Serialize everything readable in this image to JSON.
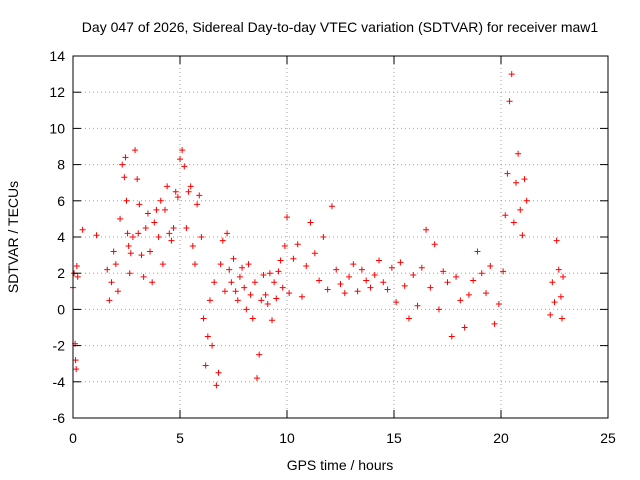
{
  "chart_data": {
    "type": "scatter",
    "title": "Day 047 of 2026, Sidereal Day-to-day VTEC variation (SDTVAR) for receiver maw1",
    "xlabel": "GPS time / hours",
    "ylabel": "SDTVAR / TECUs",
    "xlim": [
      0,
      25
    ],
    "ylim": [
      -6,
      14
    ],
    "xticks": [
      0,
      5,
      10,
      15,
      20,
      25
    ],
    "yticks": [
      -6,
      -4,
      -2,
      0,
      2,
      4,
      6,
      8,
      10,
      12,
      14
    ],
    "xtick_labels": [
      "0",
      "5",
      "10",
      "15",
      "20",
      "25"
    ],
    "ytick_labels": [
      "-6",
      "-4",
      "-2",
      "0",
      "2",
      "4",
      "6",
      "8",
      "10",
      "12",
      "14"
    ],
    "grid": true,
    "marker": "+",
    "series": [
      {
        "name": "SDTVAR maw1",
        "color": "#ff0000",
        "x": [
          0.0,
          0.05,
          0.1,
          0.12,
          0.15,
          0.18,
          0.22,
          0.45,
          1.1,
          1.6,
          1.7,
          1.8,
          1.9,
          2.0,
          2.1,
          2.2,
          2.3,
          2.4,
          2.45,
          2.5,
          2.55,
          2.6,
          2.65,
          2.7,
          2.8,
          2.9,
          3.0,
          3.05,
          3.1,
          3.2,
          3.3,
          3.4,
          3.5,
          3.6,
          3.7,
          3.8,
          3.9,
          4.0,
          4.1,
          4.2,
          4.3,
          4.4,
          4.5,
          4.6,
          4.7,
          4.8,
          4.9,
          5.0,
          5.1,
          5.2,
          5.3,
          5.4,
          5.5,
          5.6,
          5.7,
          5.8,
          5.9,
          6.0,
          6.1,
          6.2,
          6.3,
          6.4,
          6.5,
          6.6,
          6.7,
          6.8,
          6.9,
          7.0,
          7.1,
          7.2,
          7.3,
          7.4,
          7.5,
          7.6,
          7.7,
          7.8,
          7.9,
          8.0,
          8.1,
          8.2,
          8.3,
          8.4,
          8.5,
          8.6,
          8.7,
          8.8,
          8.9,
          9.0,
          9.1,
          9.2,
          9.3,
          9.4,
          9.5,
          9.6,
          9.7,
          9.8,
          9.9,
          10.0,
          10.1,
          10.3,
          10.5,
          10.7,
          10.9,
          11.1,
          11.3,
          11.5,
          11.7,
          11.9,
          12.1,
          12.3,
          12.5,
          12.7,
          12.9,
          13.1,
          13.3,
          13.5,
          13.7,
          13.9,
          14.1,
          14.3,
          14.5,
          14.7,
          14.9,
          15.1,
          15.3,
          15.5,
          15.7,
          15.9,
          16.1,
          16.3,
          16.5,
          16.7,
          16.9,
          17.1,
          17.3,
          17.5,
          17.7,
          17.9,
          18.1,
          18.3,
          18.5,
          18.7,
          18.9,
          19.1,
          19.3,
          19.5,
          19.7,
          19.9,
          20.1,
          20.2,
          20.3,
          20.4,
          20.5,
          20.6,
          20.7,
          20.8,
          20.9,
          21.0,
          21.1,
          21.2,
          22.3,
          22.4,
          22.5,
          22.6,
          22.7,
          22.8,
          22.85,
          22.9
        ],
        "y": [
          1.2,
          2.0,
          -1.9,
          -2.8,
          -3.3,
          2.4,
          1.8,
          4.4,
          4.1,
          2.2,
          0.5,
          1.5,
          3.2,
          2.5,
          1.0,
          5.0,
          8.0,
          7.3,
          8.4,
          6.0,
          4.2,
          3.5,
          2.0,
          3.1,
          4.0,
          8.8,
          7.2,
          4.2,
          5.8,
          3.0,
          1.8,
          4.5,
          5.3,
          3.2,
          1.5,
          4.8,
          5.5,
          4.0,
          6.0,
          2.5,
          5.5,
          6.8,
          4.2,
          3.8,
          4.5,
          6.5,
          6.2,
          8.3,
          8.8,
          7.9,
          4.5,
          6.5,
          6.8,
          3.5,
          2.5,
          5.8,
          6.3,
          4.0,
          -0.5,
          -3.1,
          -1.5,
          0.5,
          -2.0,
          1.5,
          -4.2,
          -3.5,
          2.5,
          3.8,
          1.0,
          4.2,
          2.2,
          1.5,
          2.8,
          1.0,
          0.5,
          1.8,
          2.3,
          1.2,
          0.0,
          2.5,
          0.8,
          -0.5,
          1.5,
          -3.8,
          -2.5,
          0.5,
          1.9,
          0.8,
          0.3,
          2.0,
          -0.6,
          1.5,
          0.6,
          2.1,
          2.7,
          1.2,
          3.5,
          5.1,
          0.9,
          2.8,
          3.6,
          0.7,
          2.4,
          4.8,
          3.1,
          1.6,
          4.0,
          1.1,
          5.7,
          2.2,
          1.4,
          0.9,
          1.8,
          2.5,
          1.0,
          2.2,
          1.6,
          1.2,
          1.9,
          2.7,
          1.5,
          1.1,
          2.3,
          0.4,
          2.6,
          1.3,
          -0.5,
          1.9,
          0.2,
          2.3,
          4.4,
          1.2,
          3.6,
          0.0,
          2.1,
          1.5,
          -1.5,
          1.8,
          0.5,
          -1.0,
          0.8,
          1.6,
          3.2,
          2.0,
          0.9,
          2.4,
          -0.8,
          0.3,
          2.1,
          5.2,
          7.5,
          11.5,
          13.0,
          4.8,
          7.0,
          8.6,
          5.5,
          4.1,
          7.2,
          6.0,
          -0.3,
          1.5,
          0.4,
          3.8,
          2.2,
          0.7,
          -0.5,
          1.8
        ]
      }
    ]
  }
}
